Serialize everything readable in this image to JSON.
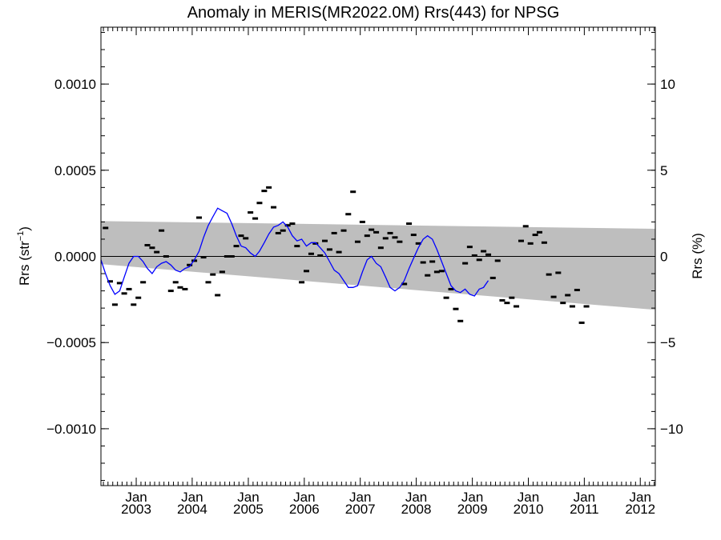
{
  "chart_data": {
    "type": "scatter",
    "title": "Anomaly in MERIS(MR2022.0M) Rrs(443) for NPSG",
    "ylabel": {
      "main": "Rrs (str",
      "sup": "−1",
      "close": ")"
    },
    "y2label": "Rrs (%)",
    "x_range": [
      "2002-05-16",
      "2012-04-08"
    ],
    "ylim": [
      -0.00133,
      0.00133
    ],
    "y2lim": [
      -13.3,
      13.3
    ],
    "y_ticks": [
      -0.001,
      -0.0005,
      0.0,
      0.0005,
      0.001
    ],
    "y_tick_labels": [
      "−0.0010",
      "−0.0005",
      "0.0000",
      "0.0005",
      "0.0010"
    ],
    "y2_ticks": [
      -10,
      -5,
      0,
      5,
      10
    ],
    "y2_tick_labels": [
      "−10",
      "−5",
      "0",
      "5",
      "10"
    ],
    "x_ticks": [
      "2003-01-01",
      "2004-01-01",
      "2005-01-01",
      "2006-01-01",
      "2007-01-01",
      "2008-01-01",
      "2009-01-01",
      "2010-01-01",
      "2011-01-01",
      "2012-01-01"
    ],
    "x_tick_month": "Jan",
    "x_tick_years": [
      "2003",
      "2004",
      "2005",
      "2006",
      "2007",
      "2008",
      "2009",
      "2010",
      "2011",
      "2012"
    ],
    "zero_line": 0,
    "envelope": {
      "color": "#bebebe",
      "upper": [
        [
          "2002-05-16",
          0.000205
        ],
        [
          "2012-04-08",
          0.00016
        ]
      ],
      "lower": [
        [
          "2002-05-16",
          -4.5e-05
        ],
        [
          "2012-04-08",
          -0.00031
        ]
      ]
    },
    "series": [
      {
        "color": "#000000",
        "values": [
          [
            "2002-06",
            0.000165
          ],
          [
            "2002-07",
            -0.000145
          ],
          [
            "2002-08",
            -0.00028
          ],
          [
            "2002-09",
            -0.000155
          ],
          [
            "2002-10",
            -0.000215
          ],
          [
            "2002-11",
            -0.00019
          ],
          [
            "2002-12",
            -0.00028
          ],
          [
            "2003-01",
            -0.00024
          ],
          [
            "2003-02",
            -0.00015
          ],
          [
            "2003-03",
            6.5e-05
          ],
          [
            "2003-04",
            5e-05
          ],
          [
            "2003-05",
            2.5e-05
          ],
          [
            "2003-06",
            0.00015
          ],
          [
            "2003-07",
            0.0
          ],
          [
            "2003-08",
            -0.0002
          ],
          [
            "2003-09",
            -0.00015
          ],
          [
            "2003-10",
            -0.00018
          ],
          [
            "2003-11",
            -0.00019
          ],
          [
            "2003-12",
            -5e-05
          ],
          [
            "2004-01",
            -2.5e-05
          ],
          [
            "2004-02",
            0.000225
          ],
          [
            "2004-03",
            -5e-06
          ],
          [
            "2004-04",
            -0.00015
          ],
          [
            "2004-05",
            -0.000105
          ],
          [
            "2004-06",
            -0.000225
          ],
          [
            "2004-07",
            -9e-05
          ],
          [
            "2004-08",
            0.0
          ],
          [
            "2004-09",
            0.0
          ],
          [
            "2004-10",
            6e-05
          ],
          [
            "2004-11",
            0.00012
          ],
          [
            "2004-12",
            0.000105
          ],
          [
            "2005-01",
            0.000255
          ],
          [
            "2005-02",
            0.00022
          ],
          [
            "2005-03",
            0.00031
          ],
          [
            "2005-04",
            0.00038
          ],
          [
            "2005-05",
            0.0004
          ],
          [
            "2005-06",
            0.000285
          ],
          [
            "2005-07",
            0.000135
          ],
          [
            "2005-08",
            0.00015
          ],
          [
            "2005-09",
            0.00018
          ],
          [
            "2005-10",
            0.00019
          ],
          [
            "2005-11",
            6e-05
          ],
          [
            "2005-12",
            -0.00015
          ],
          [
            "2006-01",
            -8.5e-05
          ],
          [
            "2006-02",
            1.5e-05
          ],
          [
            "2006-03",
            7.5e-05
          ],
          [
            "2006-04",
            5e-06
          ],
          [
            "2006-05",
            9e-05
          ],
          [
            "2006-06",
            4e-05
          ],
          [
            "2006-07",
            0.000135
          ],
          [
            "2006-08",
            2.5e-05
          ],
          [
            "2006-09",
            0.00015
          ],
          [
            "2006-10",
            0.000245
          ],
          [
            "2006-11",
            0.000375
          ],
          [
            "2006-12",
            8.5e-05
          ],
          [
            "2007-01",
            0.0002
          ],
          [
            "2007-02",
            0.00012
          ],
          [
            "2007-03",
            0.000155
          ],
          [
            "2007-04",
            0.00014
          ],
          [
            "2007-05",
            5e-05
          ],
          [
            "2007-06",
            0.000105
          ],
          [
            "2007-07",
            0.000135
          ],
          [
            "2007-08",
            0.00011
          ],
          [
            "2007-09",
            8.5e-05
          ],
          [
            "2007-10",
            -0.00016
          ],
          [
            "2007-11",
            0.00019
          ],
          [
            "2007-12",
            0.000125
          ],
          [
            "2008-01",
            7.5e-05
          ],
          [
            "2008-02",
            -3.5e-05
          ],
          [
            "2008-03",
            -0.00011
          ],
          [
            "2008-04",
            -3e-05
          ],
          [
            "2008-05",
            -9e-05
          ],
          [
            "2008-06",
            -8.5e-05
          ],
          [
            "2008-07",
            -0.00024
          ],
          [
            "2008-08",
            -0.00019
          ],
          [
            "2008-09",
            -0.000305
          ],
          [
            "2008-10",
            -0.000375
          ],
          [
            "2008-11",
            -4e-05
          ],
          [
            "2008-12",
            5.5e-05
          ],
          [
            "2009-01",
            5e-06
          ],
          [
            "2009-02",
            -2e-05
          ],
          [
            "2009-03",
            3e-05
          ],
          [
            "2009-04",
            1e-05
          ],
          [
            "2009-05",
            -0.000125
          ],
          [
            "2009-06",
            -2.5e-05
          ],
          [
            "2009-07",
            -0.000255
          ],
          [
            "2009-08",
            -0.00027
          ],
          [
            "2009-09",
            -0.00024
          ],
          [
            "2009-10",
            -0.00029
          ],
          [
            "2009-11",
            9e-05
          ],
          [
            "2009-12",
            0.000175
          ],
          [
            "2010-01",
            7.5e-05
          ],
          [
            "2010-02",
            0.000125
          ],
          [
            "2010-03",
            0.00014
          ],
          [
            "2010-04",
            8e-05
          ],
          [
            "2010-05",
            -0.000105
          ],
          [
            "2010-06",
            -0.000235
          ],
          [
            "2010-07",
            -9.5e-05
          ],
          [
            "2010-08",
            -0.00027
          ],
          [
            "2010-09",
            -0.000225
          ],
          [
            "2010-10",
            -0.00029
          ],
          [
            "2010-11",
            -0.000195
          ],
          [
            "2010-12",
            -0.000385
          ],
          [
            "2011-01",
            -0.00029
          ]
        ]
      },
      {
        "color": "#0000ff",
        "values": [
          [
            "2002-05-16",
            -2e-05
          ],
          [
            "2002-06-15",
            -0.0001
          ],
          [
            "2002-07-15",
            -0.00017
          ],
          [
            "2002-08-15",
            -0.00022
          ],
          [
            "2002-09-15",
            -0.0002
          ],
          [
            "2002-10-15",
            -0.00012
          ],
          [
            "2002-11-15",
            -4e-05
          ],
          [
            "2002-12-15",
            0.0
          ],
          [
            "2003-01-15",
            0.0
          ],
          [
            "2003-02-15",
            -3e-05
          ],
          [
            "2003-03-15",
            -7e-05
          ],
          [
            "2003-04-15",
            -0.0001
          ],
          [
            "2003-05-15",
            -6e-05
          ],
          [
            "2003-06-15",
            -4e-05
          ],
          [
            "2003-07-15",
            -3e-05
          ],
          [
            "2003-08-15",
            -5e-05
          ],
          [
            "2003-09-15",
            -8e-05
          ],
          [
            "2003-10-15",
            -9e-05
          ],
          [
            "2003-11-15",
            -7e-05
          ],
          [
            "2003-12-15",
            -6e-05
          ],
          [
            "2004-01-15",
            -2e-05
          ],
          [
            "2004-02-15",
            3e-05
          ],
          [
            "2004-03-15",
            0.00011
          ],
          [
            "2004-04-15",
            0.00018
          ],
          [
            "2004-05-15",
            0.00023
          ],
          [
            "2004-06-15",
            0.00028
          ],
          [
            "2004-07-15",
            0.000265
          ],
          [
            "2004-08-15",
            0.00025
          ],
          [
            "2004-09-15",
            0.00019
          ],
          [
            "2004-10-15",
            0.00012
          ],
          [
            "2004-11-15",
            6e-05
          ],
          [
            "2004-12-15",
            5e-05
          ],
          [
            "2005-01-15",
            2e-05
          ],
          [
            "2005-02-15",
            0.0
          ],
          [
            "2005-03-15",
            3e-05
          ],
          [
            "2005-04-15",
            8e-05
          ],
          [
            "2005-05-15",
            0.00013
          ],
          [
            "2005-06-15",
            0.00017
          ],
          [
            "2005-07-15",
            0.00018
          ],
          [
            "2005-08-15",
            0.0002
          ],
          [
            "2005-09-15",
            0.00017
          ],
          [
            "2005-10-15",
            0.00012
          ],
          [
            "2005-11-15",
            9e-05
          ],
          [
            "2005-12-15",
            0.0001
          ],
          [
            "2006-01-15",
            6e-05
          ],
          [
            "2006-02-15",
            8e-05
          ],
          [
            "2006-03-15",
            8e-05
          ],
          [
            "2006-04-15",
            5e-05
          ],
          [
            "2006-05-15",
            2e-05
          ],
          [
            "2006-06-15",
            -3e-05
          ],
          [
            "2006-07-15",
            -8e-05
          ],
          [
            "2006-08-15",
            -0.0001
          ],
          [
            "2006-09-15",
            -0.00014
          ],
          [
            "2006-10-15",
            -0.00018
          ],
          [
            "2006-11-15",
            -0.00018
          ],
          [
            "2006-12-15",
            -0.00017
          ],
          [
            "2007-01-15",
            -9e-05
          ],
          [
            "2007-02-15",
            -2e-05
          ],
          [
            "2007-03-15",
            0.0
          ],
          [
            "2007-04-15",
            -4e-05
          ],
          [
            "2007-05-15",
            -6e-05
          ],
          [
            "2007-06-15",
            -0.00012
          ],
          [
            "2007-07-15",
            -0.00018
          ],
          [
            "2007-08-15",
            -0.0002
          ],
          [
            "2007-09-15",
            -0.00018
          ],
          [
            "2007-10-15",
            -0.00014
          ],
          [
            "2007-11-15",
            -7e-05
          ],
          [
            "2007-12-15",
            -1e-05
          ],
          [
            "2008-01-15",
            5e-05
          ],
          [
            "2008-02-15",
            0.0001
          ],
          [
            "2008-03-15",
            0.00012
          ],
          [
            "2008-04-15",
            0.0001
          ],
          [
            "2008-05-15",
            4e-05
          ],
          [
            "2008-06-15",
            -3e-05
          ],
          [
            "2008-07-15",
            -0.0001
          ],
          [
            "2008-08-15",
            -0.00017
          ],
          [
            "2008-09-15",
            -0.0002
          ],
          [
            "2008-10-15",
            -0.00021
          ],
          [
            "2008-11-15",
            -0.00019
          ],
          [
            "2008-12-15",
            -0.00022
          ],
          [
            "2009-01-15",
            -0.00023
          ],
          [
            "2009-02-15",
            -0.00019
          ],
          [
            "2009-03-15",
            -0.00018
          ],
          [
            "2009-04-15",
            -0.00014
          ]
        ]
      }
    ]
  }
}
